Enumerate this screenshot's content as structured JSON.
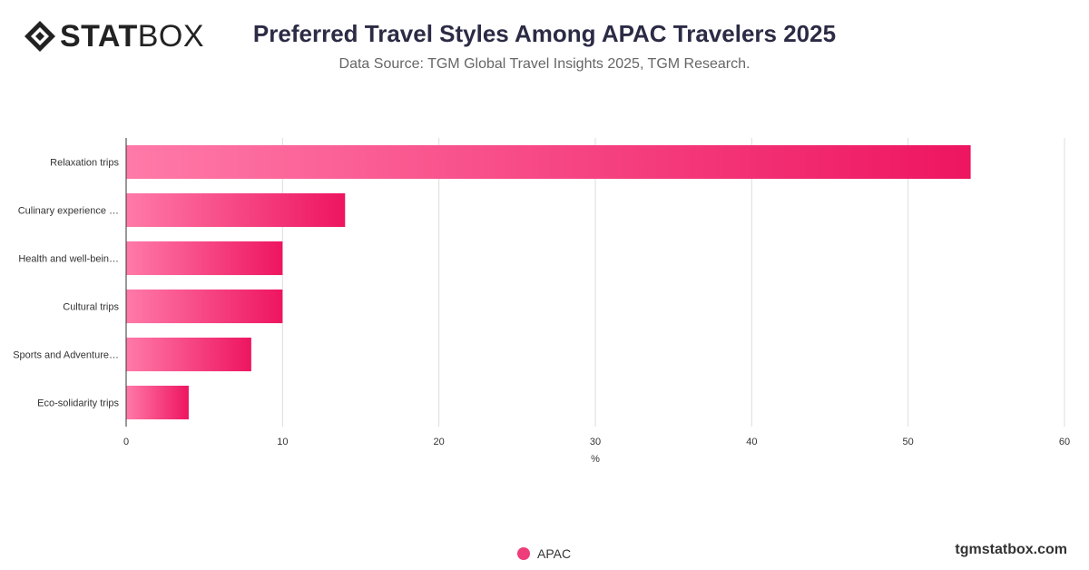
{
  "header": {
    "logo_text_bold": "STAT",
    "logo_text_light": "BOX",
    "title": "Preferred Travel Styles Among APAC Travelers 2025",
    "subtitle": "Data Source: TGM Global Travel Insights 2025, TGM Research."
  },
  "footer": {
    "legend_label": "APAC",
    "watermark": "tgmstatbox.com"
  },
  "colors": {
    "bar_start": "#ff7aa8",
    "bar_end": "#ee1560",
    "grid": "#dddddd",
    "axis": "#333333"
  },
  "chart_data": {
    "type": "bar",
    "orientation": "horizontal",
    "categories": [
      "Relaxation trips",
      "Culinary experience …",
      "Health and well-bein…",
      "Cultural trips",
      "Sports and Adventure…",
      "Eco-solidarity trips"
    ],
    "series": [
      {
        "name": "APAC",
        "values": [
          54,
          14,
          10,
          10,
          8,
          4
        ]
      }
    ],
    "xlabel": "%",
    "xlim": [
      0,
      60
    ],
    "xticks": [
      0,
      10,
      20,
      30,
      40,
      50,
      60
    ],
    "grid": true,
    "legend": "bottom-center"
  }
}
